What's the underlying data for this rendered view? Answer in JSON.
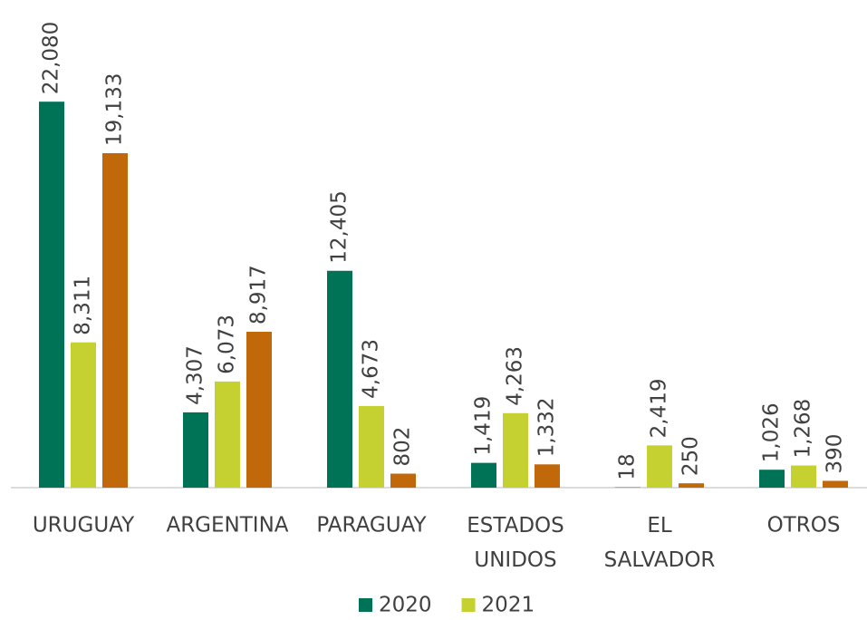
{
  "chart_data": {
    "type": "bar",
    "categories": [
      "URUGUAY",
      "ARGENTINA",
      "PARAGUAY",
      "ESTADOS UNIDOS",
      "EL SALVADOR",
      "OTROS"
    ],
    "series": [
      {
        "name": "2020",
        "color": "#007256",
        "values": [
          22080,
          4307,
          12405,
          1419,
          18,
          1026
        ],
        "value_labels": [
          "22,080",
          "4,307",
          "12,405",
          "1,419",
          "18",
          "1,026"
        ]
      },
      {
        "name": "2021",
        "color": "#c4d131",
        "values": [
          8311,
          6073,
          4673,
          4263,
          2419,
          1268
        ],
        "value_labels": [
          "8,311",
          "6,073",
          "4,673",
          "4,263",
          "2,419",
          "1,268"
        ]
      },
      {
        "name": null,
        "color": "#c0680a",
        "values": [
          19133,
          8917,
          802,
          1332,
          250,
          390
        ],
        "value_labels": [
          "19,133",
          "8,917",
          "802",
          "1,332",
          "250",
          "390"
        ]
      }
    ],
    "ylim": [
      0,
      28000
    ]
  }
}
